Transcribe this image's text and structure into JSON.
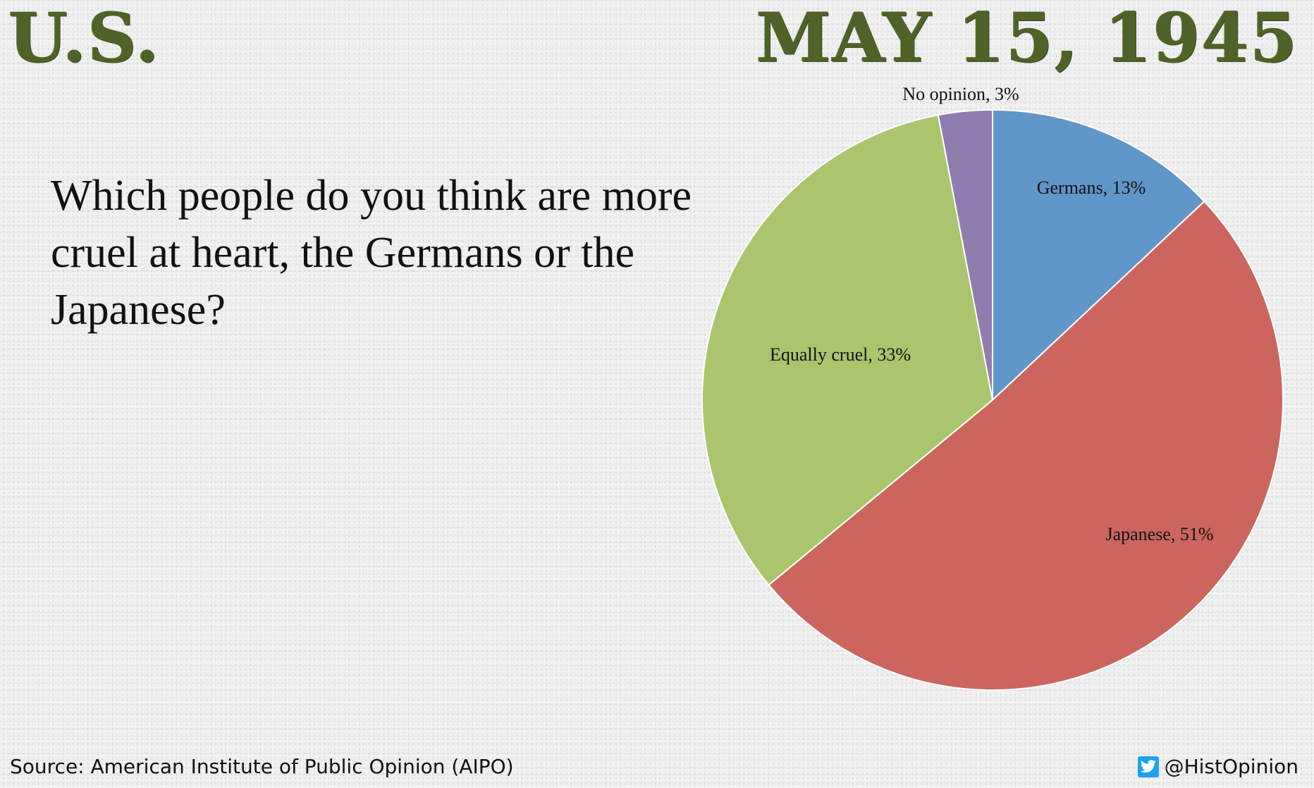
{
  "header": {
    "region": "U.S.",
    "date": "MAY 15, 1945"
  },
  "question": "Which people do you think are more cruel at heart, the Germans or the Japanese?",
  "chart_data": {
    "type": "pie",
    "slices": [
      {
        "name": "Germans",
        "value": 13,
        "color": "#6096c8",
        "label": "Germans, 13%"
      },
      {
        "name": "Japanese",
        "value": 51,
        "color": "#cd655f",
        "label": "Japanese, 51%"
      },
      {
        "name": "Equally cruel",
        "value": 33,
        "color": "#aac56e",
        "label": "Equally cruel, 33%"
      },
      {
        "name": "No opinion",
        "value": 3,
        "color": "#917cb0",
        "label": "No opinion, 3%"
      }
    ],
    "start": "12 o'clock",
    "direction": "clockwise"
  },
  "footer": {
    "source": "Source: American Institute of Public Opinion (AIPO)",
    "handle": "@HistOpinion",
    "handle_icon": "twitter-bird-icon"
  },
  "colors": {
    "headline": "#4f6228",
    "background": "#e9e9e9",
    "twitter": "#1da1f2"
  }
}
